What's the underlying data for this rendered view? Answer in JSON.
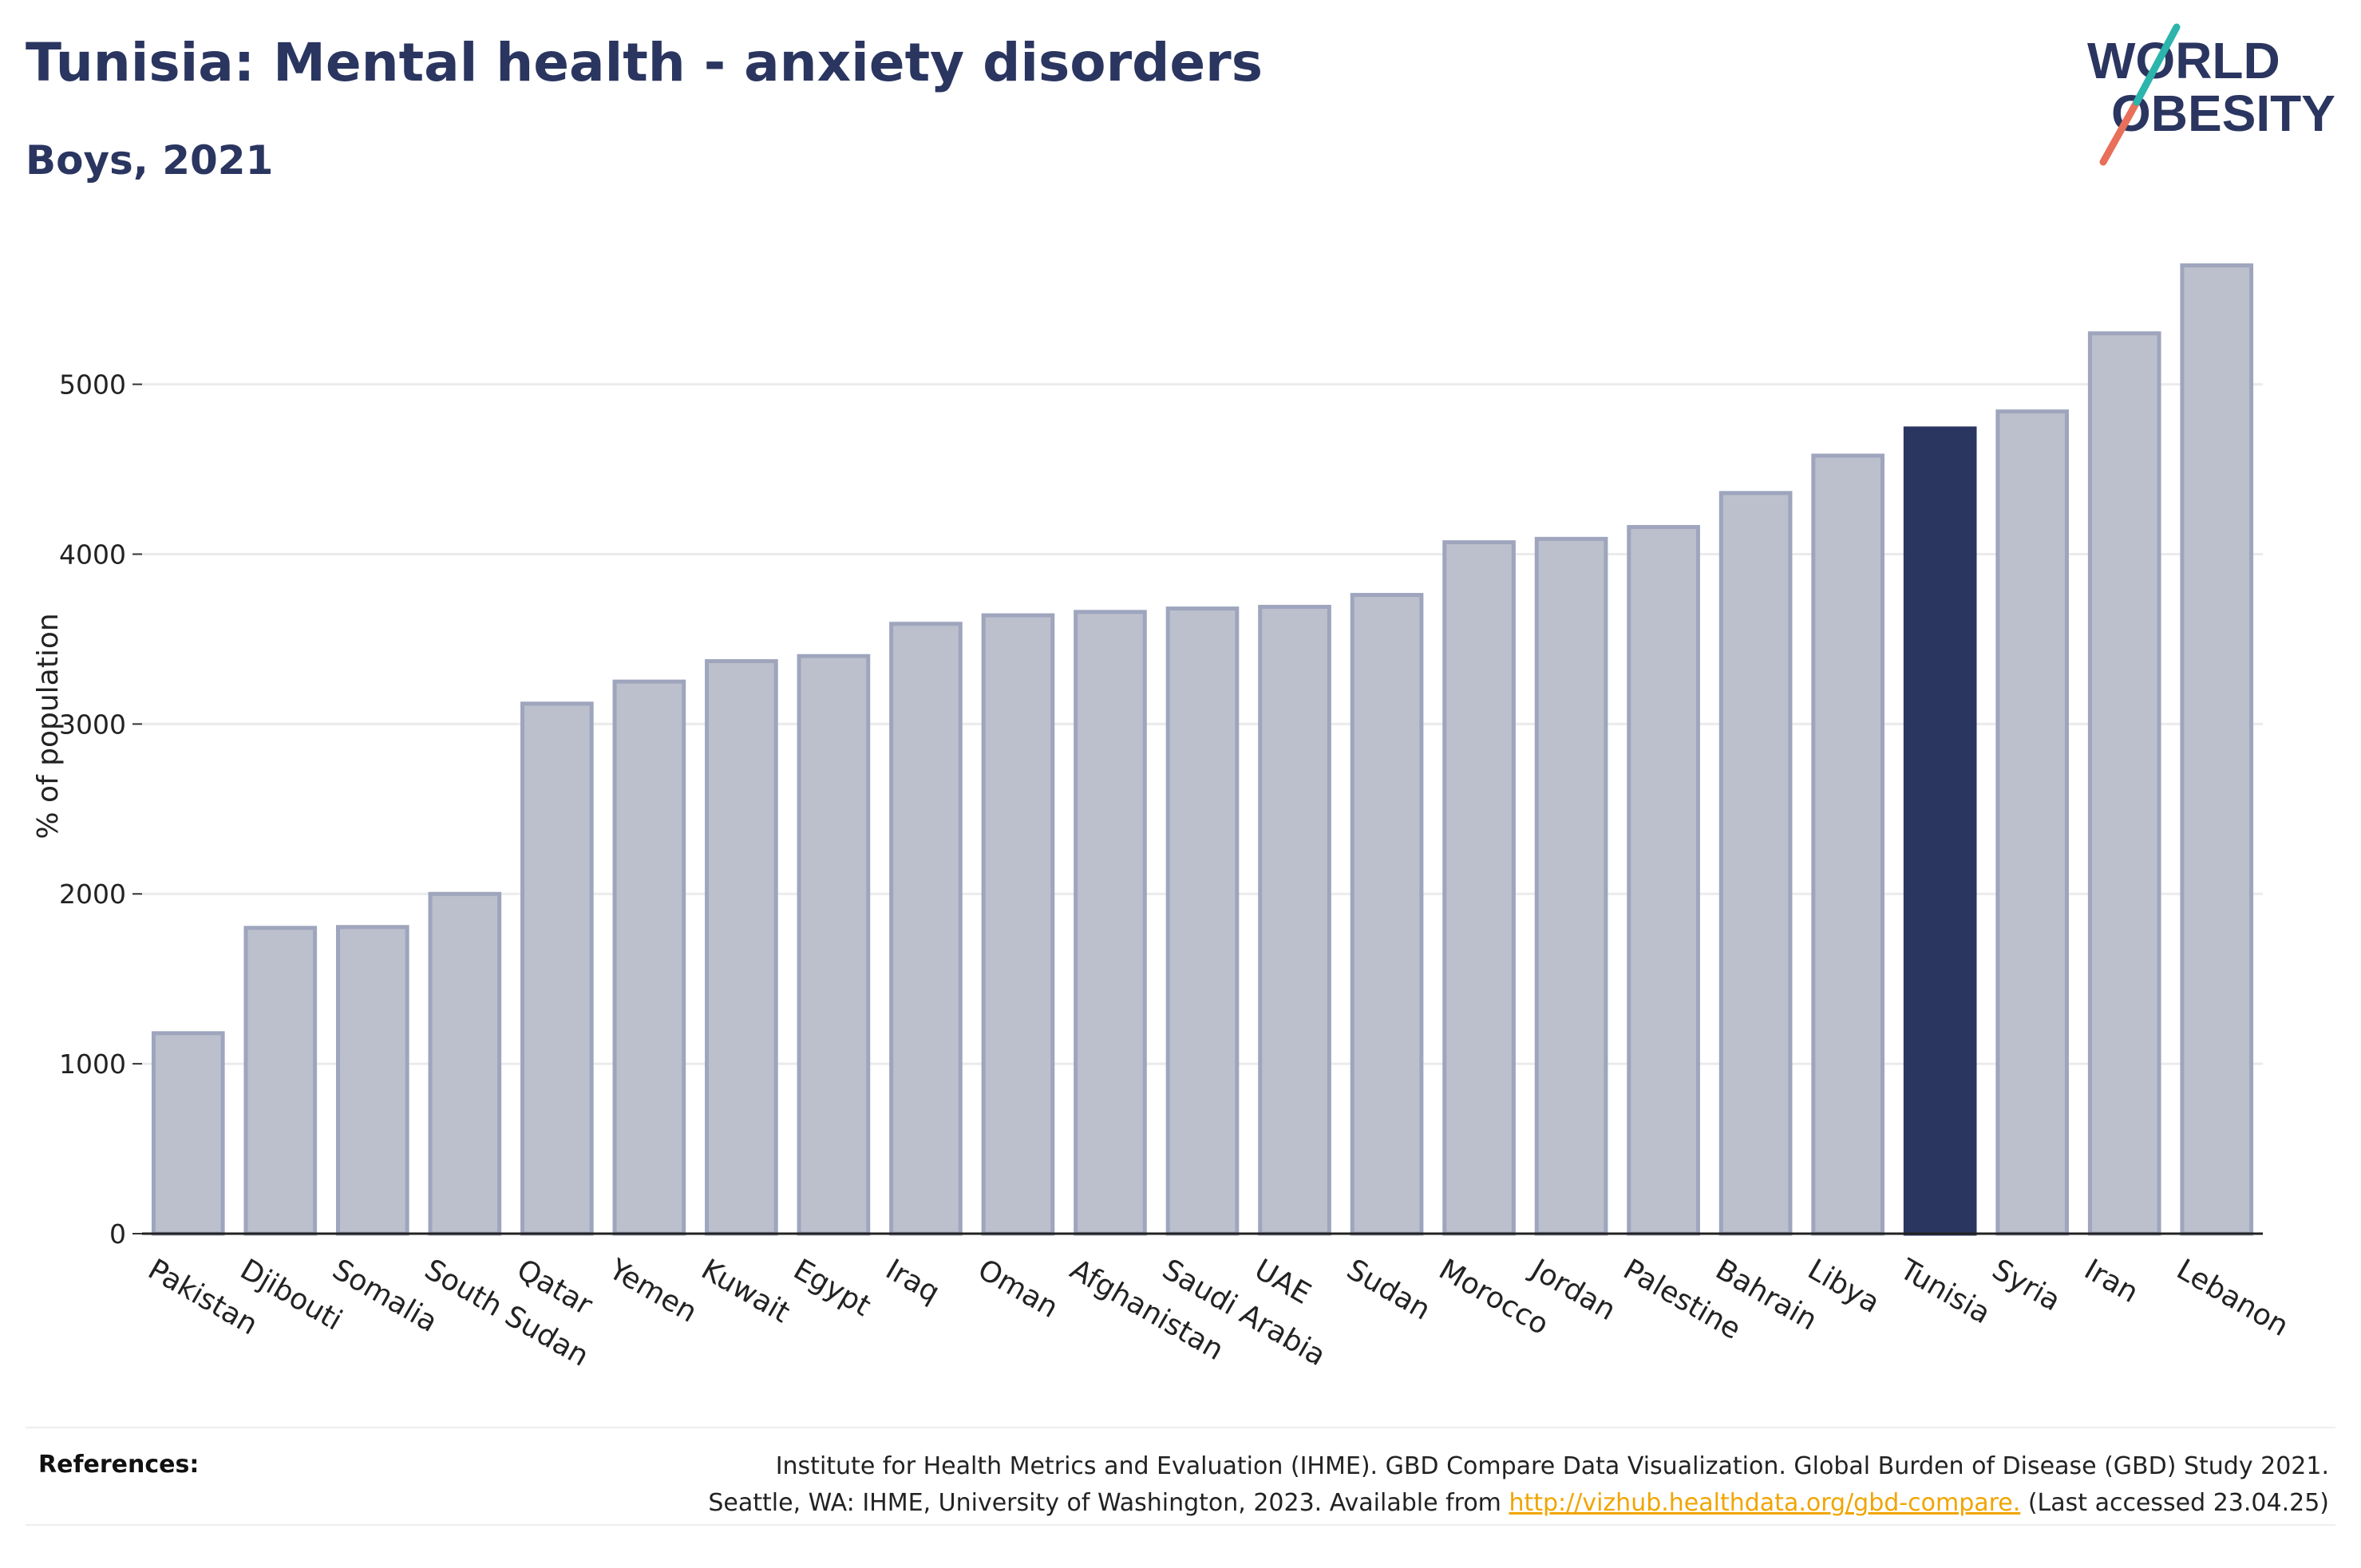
{
  "header": {
    "title": "Tunisia: Mental health - anxiety disorders",
    "subtitle": "Boys, 2021"
  },
  "logo": {
    "line1": "WORLD",
    "line2": "OBESITY"
  },
  "colors": {
    "bar": "#bcc0cc",
    "bar_stroke": "#9ea5bd",
    "highlight": "#2a3560",
    "title": "#2a3560",
    "link": "#f0a500"
  },
  "chart_data": {
    "type": "bar",
    "title": "Tunisia: Mental health - anxiety disorders",
    "subtitle": "Boys, 2021",
    "xlabel": "",
    "ylabel": "% of population",
    "ylim": [
      0,
      5900
    ],
    "yticks": [
      0,
      1000,
      2000,
      3000,
      4000,
      5000
    ],
    "grid": true,
    "highlight": "Tunisia",
    "categories": [
      "Pakistan",
      "Djibouti",
      "Somalia",
      "South Sudan",
      "Qatar",
      "Yemen",
      "Kuwait",
      "Egypt",
      "Iraq",
      "Oman",
      "Afghanistan",
      "Saudi Arabia",
      "UAE",
      "Sudan",
      "Morocco",
      "Jordan",
      "Palestine",
      "Bahrain",
      "Libya",
      "Tunisia",
      "Syria",
      "Iran",
      "Lebanon"
    ],
    "values": [
      1180,
      1800,
      1805,
      2000,
      3120,
      3250,
      3370,
      3400,
      3590,
      3640,
      3660,
      3680,
      3690,
      3760,
      4070,
      4090,
      4160,
      4360,
      4580,
      4740,
      4840,
      5300,
      5700
    ]
  },
  "references": {
    "label": "References:",
    "line1": "Institute for Health Metrics and Evaluation (IHME). GBD Compare Data Visualization. Global Burden of Disease (GBD) Study 2021.",
    "line2_prefix": "Seattle, WA: IHME, University of Washington, 2023. Available from ",
    "link": "http://vizhub.healthdata.org/gbd-compare.",
    "line2_suffix": " (Last accessed 23.04.25)"
  }
}
